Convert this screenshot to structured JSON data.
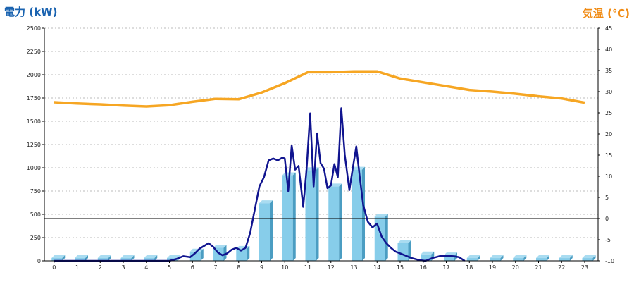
{
  "chart_data": {
    "type": "bar",
    "title_left": "電力 (kW)",
    "title_right": "気温 (℃)",
    "colors": {
      "left_title": "#1a63b0",
      "right_title": "#f08a12",
      "bars": "#87cdea",
      "bar_side": "#4b9dc2",
      "power_line": "#10148f",
      "temperature_line": "#f6a623",
      "gridline": "#bbbbbb",
      "zero_line": "#000000"
    },
    "grid": true,
    "x_categories": [
      "0",
      "1",
      "2",
      "3",
      "4",
      "5",
      "6",
      "7",
      "8",
      "9",
      "10",
      "11",
      "12",
      "13",
      "14",
      "15",
      "16",
      "17",
      "18",
      "19",
      "20",
      "21",
      "22",
      "23"
    ],
    "y_left": {
      "min": 0,
      "max": 2500,
      "ticks": [
        "0",
        "250",
        "500",
        "750",
        "1000",
        "1250",
        "1500",
        "1750",
        "2000",
        "2250",
        "2500"
      ]
    },
    "y_right": {
      "min": -10,
      "max": 45,
      "ticks": [
        "-10",
        "-5",
        "0",
        "5",
        "10",
        "15",
        "20",
        "25",
        "30",
        "35",
        "40",
        "45"
      ]
    },
    "bars": [
      30,
      30,
      30,
      30,
      30,
      30,
      100,
      140,
      130,
      620,
      920,
      975,
      800,
      980,
      475,
      190,
      70,
      60,
      30,
      30,
      30,
      30,
      30,
      30
    ],
    "power_line": {
      "x": [
        0,
        1,
        2,
        3,
        4,
        5,
        5.3,
        5.6,
        5.9,
        6.1,
        6.3,
        6.5,
        6.7,
        6.9,
        7.1,
        7.3,
        7.5,
        7.7,
        7.9,
        8.1,
        8.3,
        8.5,
        8.7,
        8.9,
        9.1,
        9.3,
        9.5,
        9.7,
        9.9,
        10.0,
        10.15,
        10.3,
        10.45,
        10.6,
        10.8,
        10.95,
        11.1,
        11.25,
        11.4,
        11.55,
        11.7,
        11.85,
        12.0,
        12.15,
        12.3,
        12.45,
        12.6,
        12.8,
        12.95,
        13.1,
        13.25,
        13.4,
        13.6,
        13.8,
        14.0,
        14.2,
        14.4,
        14.6,
        14.8,
        15.0,
        15.2,
        15.5,
        15.8,
        16.1,
        16.4,
        16.7,
        17.0,
        17.3,
        17.55,
        17.8
      ],
      "y": [
        0,
        0,
        0,
        0,
        0,
        0,
        20,
        50,
        40,
        80,
        130,
        160,
        190,
        150,
        90,
        60,
        80,
        120,
        140,
        110,
        140,
        300,
        550,
        800,
        900,
        1080,
        1100,
        1080,
        1110,
        1100,
        750,
        1240,
        980,
        1020,
        580,
        1000,
        1585,
        800,
        1370,
        1050,
        990,
        780,
        810,
        1040,
        900,
        1640,
        1140,
        760,
        1000,
        1230,
        900,
        600,
        420,
        360,
        400,
        260,
        190,
        140,
        100,
        80,
        60,
        30,
        10,
        0,
        30,
        50,
        55,
        50,
        40,
        0
      ]
    },
    "temperature_line": {
      "x": [
        0,
        1,
        2,
        3,
        4,
        5,
        6,
        7,
        8,
        9,
        10,
        11,
        12,
        13,
        14,
        15,
        16,
        17,
        18,
        19,
        20,
        21,
        22,
        23
      ],
      "y": [
        27.5,
        27.2,
        27.0,
        26.7,
        26.5,
        26.8,
        27.6,
        28.3,
        28.2,
        29.8,
        32.0,
        34.6,
        34.6,
        34.8,
        34.8,
        33.1,
        32.2,
        31.3,
        30.4,
        30.0,
        29.5,
        28.9,
        28.4,
        27.4
      ]
    },
    "zero_line_temperature": 0
  }
}
